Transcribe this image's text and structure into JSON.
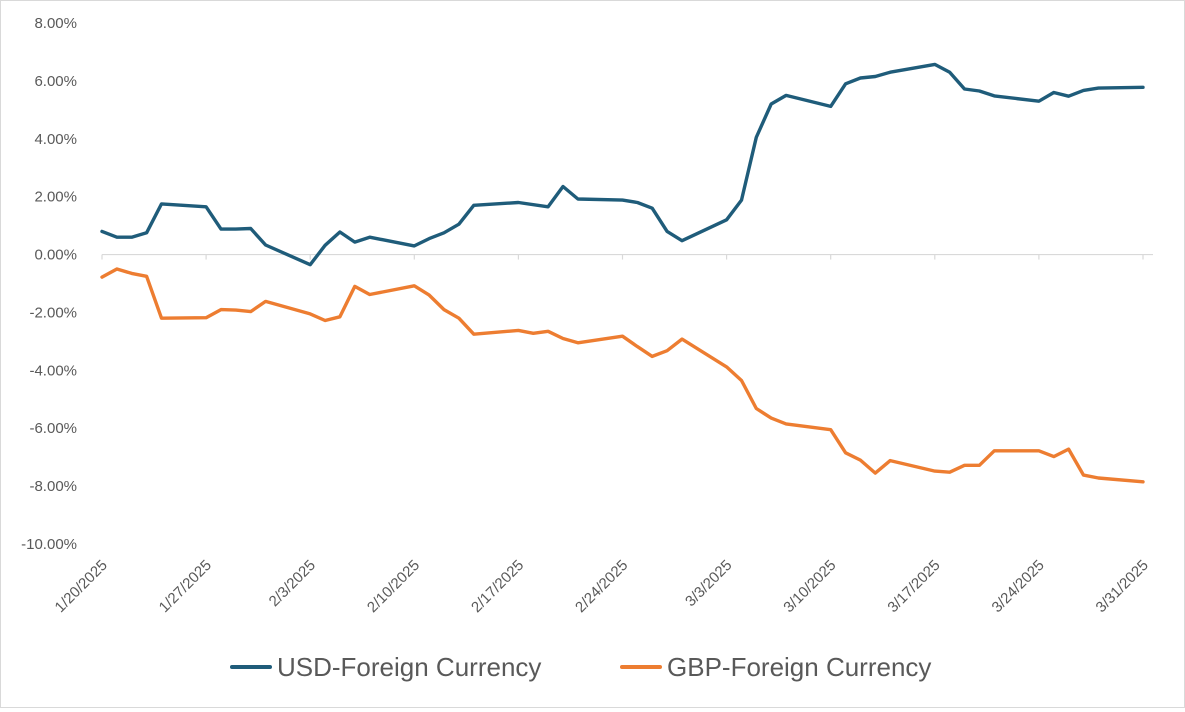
{
  "chart_data": {
    "type": "line",
    "title": "",
    "xlabel": "",
    "ylabel": "",
    "ylim": [
      -10,
      8
    ],
    "y_ticks": [
      8,
      6,
      4,
      2,
      0,
      -2,
      -4,
      -6,
      -8,
      -10
    ],
    "y_tick_labels": [
      "8.00%",
      "6.00%",
      "4.00%",
      "2.00%",
      "0.00%",
      "-2.00%",
      "-4.00%",
      "-6.00%",
      "-8.00%",
      "-10.00%"
    ],
    "x_range": [
      "2025-01-20",
      "2025-03-31"
    ],
    "x_ticks": [
      "2025-01-20",
      "2025-01-27",
      "2025-02-03",
      "2025-02-10",
      "2025-02-17",
      "2025-02-24",
      "2025-03-03",
      "2025-03-10",
      "2025-03-17",
      "2025-03-24",
      "2025-03-31"
    ],
    "x_tick_labels": [
      "1/20/2025",
      "1/27/2025",
      "2/3/2025",
      "2/10/2025",
      "2/17/2025",
      "2/24/2025",
      "3/3/2025",
      "3/10/2025",
      "3/17/2025",
      "3/24/2025",
      "3/31/2025"
    ],
    "grid": false,
    "legend_position": "bottom",
    "series": [
      {
        "name": "USD-Foreign Currency",
        "color": "#1f5c7a",
        "points": [
          [
            "2025-01-20",
            0.8
          ],
          [
            "2025-01-21",
            0.6
          ],
          [
            "2025-01-22",
            0.6
          ],
          [
            "2025-01-23",
            0.75
          ],
          [
            "2025-01-24",
            1.75
          ],
          [
            "2025-01-27",
            1.65
          ],
          [
            "2025-01-28",
            0.88
          ],
          [
            "2025-01-29",
            0.88
          ],
          [
            "2025-01-30",
            0.9
          ],
          [
            "2025-01-31",
            0.33
          ],
          [
            "2025-02-03",
            -0.35
          ],
          [
            "2025-02-04",
            0.32
          ],
          [
            "2025-02-05",
            0.78
          ],
          [
            "2025-02-06",
            0.43
          ],
          [
            "2025-02-07",
            0.6
          ],
          [
            "2025-02-10",
            0.3
          ],
          [
            "2025-02-11",
            0.55
          ],
          [
            "2025-02-12",
            0.75
          ],
          [
            "2025-02-13",
            1.05
          ],
          [
            "2025-02-14",
            1.7
          ],
          [
            "2025-02-17",
            1.8
          ],
          [
            "2025-02-19",
            1.65
          ],
          [
            "2025-02-20",
            2.35
          ],
          [
            "2025-02-21",
            1.92
          ],
          [
            "2025-02-24",
            1.88
          ],
          [
            "2025-02-25",
            1.8
          ],
          [
            "2025-02-26",
            1.6
          ],
          [
            "2025-02-27",
            0.8
          ],
          [
            "2025-02-28",
            0.48
          ],
          [
            "2025-03-03",
            1.2
          ],
          [
            "2025-03-04",
            1.88
          ],
          [
            "2025-03-05",
            4.05
          ],
          [
            "2025-03-06",
            5.2
          ],
          [
            "2025-03-07",
            5.5
          ],
          [
            "2025-03-10",
            5.12
          ],
          [
            "2025-03-11",
            5.9
          ],
          [
            "2025-03-12",
            6.1
          ],
          [
            "2025-03-13",
            6.15
          ],
          [
            "2025-03-14",
            6.3
          ],
          [
            "2025-03-17",
            6.57
          ],
          [
            "2025-03-18",
            6.3
          ],
          [
            "2025-03-19",
            5.72
          ],
          [
            "2025-03-20",
            5.65
          ],
          [
            "2025-03-21",
            5.48
          ],
          [
            "2025-03-24",
            5.3
          ],
          [
            "2025-03-25",
            5.6
          ],
          [
            "2025-03-26",
            5.47
          ],
          [
            "2025-03-27",
            5.67
          ],
          [
            "2025-03-28",
            5.75
          ],
          [
            "2025-03-31",
            5.78
          ]
        ]
      },
      {
        "name": "GBP-Foreign Currency",
        "color": "#ed7d31",
        "points": [
          [
            "2025-01-20",
            -0.78
          ],
          [
            "2025-01-21",
            -0.5
          ],
          [
            "2025-01-22",
            -0.65
          ],
          [
            "2025-01-23",
            -0.75
          ],
          [
            "2025-01-24",
            -2.2
          ],
          [
            "2025-01-27",
            -2.18
          ],
          [
            "2025-01-28",
            -1.9
          ],
          [
            "2025-01-29",
            -1.92
          ],
          [
            "2025-01-30",
            -1.97
          ],
          [
            "2025-01-31",
            -1.62
          ],
          [
            "2025-02-03",
            -2.05
          ],
          [
            "2025-02-04",
            -2.28
          ],
          [
            "2025-02-05",
            -2.15
          ],
          [
            "2025-02-06",
            -1.1
          ],
          [
            "2025-02-07",
            -1.38
          ],
          [
            "2025-02-10",
            -1.08
          ],
          [
            "2025-02-11",
            -1.4
          ],
          [
            "2025-02-12",
            -1.9
          ],
          [
            "2025-02-13",
            -2.2
          ],
          [
            "2025-02-14",
            -2.75
          ],
          [
            "2025-02-17",
            -2.62
          ],
          [
            "2025-02-18",
            -2.72
          ],
          [
            "2025-02-19",
            -2.65
          ],
          [
            "2025-02-20",
            -2.9
          ],
          [
            "2025-02-21",
            -3.05
          ],
          [
            "2025-02-24",
            -2.82
          ],
          [
            "2025-02-25",
            -3.18
          ],
          [
            "2025-02-26",
            -3.52
          ],
          [
            "2025-02-27",
            -3.32
          ],
          [
            "2025-02-28",
            -2.92
          ],
          [
            "2025-03-03",
            -3.88
          ],
          [
            "2025-03-04",
            -4.35
          ],
          [
            "2025-03-05",
            -5.32
          ],
          [
            "2025-03-06",
            -5.65
          ],
          [
            "2025-03-07",
            -5.85
          ],
          [
            "2025-03-10",
            -6.05
          ],
          [
            "2025-03-11",
            -6.85
          ],
          [
            "2025-03-12",
            -7.1
          ],
          [
            "2025-03-13",
            -7.55
          ],
          [
            "2025-03-14",
            -7.12
          ],
          [
            "2025-03-17",
            -7.48
          ],
          [
            "2025-03-18",
            -7.52
          ],
          [
            "2025-03-19",
            -7.28
          ],
          [
            "2025-03-20",
            -7.28
          ],
          [
            "2025-03-21",
            -6.78
          ],
          [
            "2025-03-24",
            -6.78
          ],
          [
            "2025-03-25",
            -6.98
          ],
          [
            "2025-03-26",
            -6.72
          ],
          [
            "2025-03-27",
            -7.62
          ],
          [
            "2025-03-28",
            -7.72
          ],
          [
            "2025-03-31",
            -7.85
          ]
        ]
      }
    ]
  }
}
